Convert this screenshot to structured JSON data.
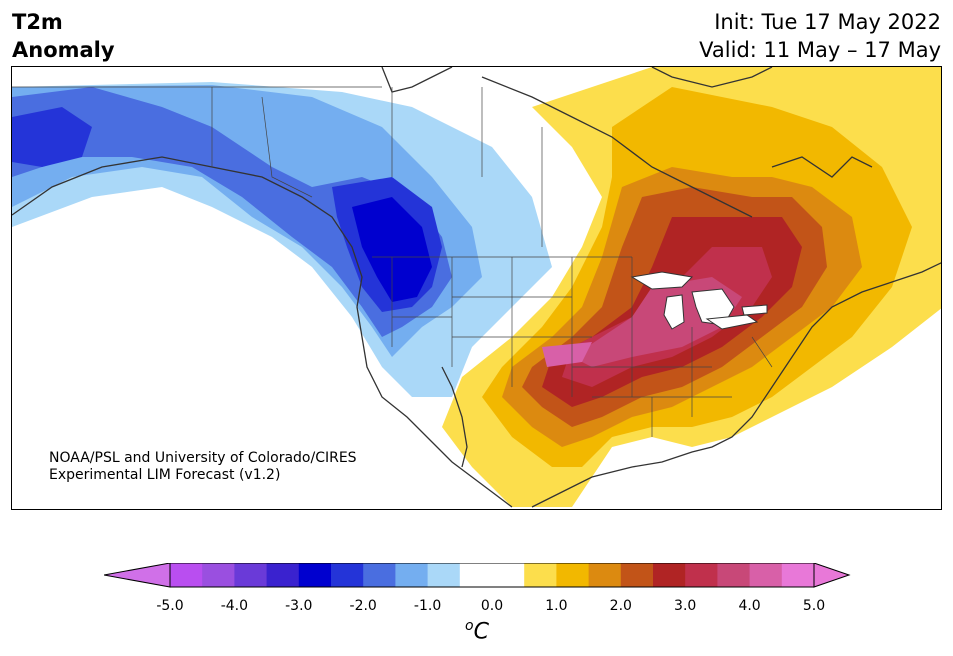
{
  "header": {
    "title_line1": "T2m",
    "title_line2": "Anomaly",
    "init": "Init: Tue 17 May 2022",
    "valid": "Valid: 11 May – 17 May"
  },
  "credit": {
    "line1": "NOAA/PSL and University of Colorado/CIRES",
    "line2": "Experimental LIM Forecast (v1.2)"
  },
  "colorbar": {
    "unit": "C",
    "unit_superscript": "o",
    "ticks": [
      "-5.0",
      "-4.0",
      "-3.0",
      "-2.0",
      "-1.0",
      "0.0",
      "1.0",
      "2.0",
      "3.0",
      "4.0",
      "5.0"
    ],
    "colors": [
      "#b94ef0",
      "#9a4fe0",
      "#6a3ad8",
      "#3a22cf",
      "#0000cf",
      "#2434d8",
      "#4a6ee0",
      "#74aef0",
      "#aad8f8",
      "#ffffff",
      "#ffffff",
      "#fcde4c",
      "#f2b800",
      "#dc8a10",
      "#c25418",
      "#b02424",
      "#c0304c",
      "#c84878",
      "#d860a8",
      "#e878d8"
    ],
    "under_color": "#d070e8",
    "over_color": "#e878d8"
  }
}
